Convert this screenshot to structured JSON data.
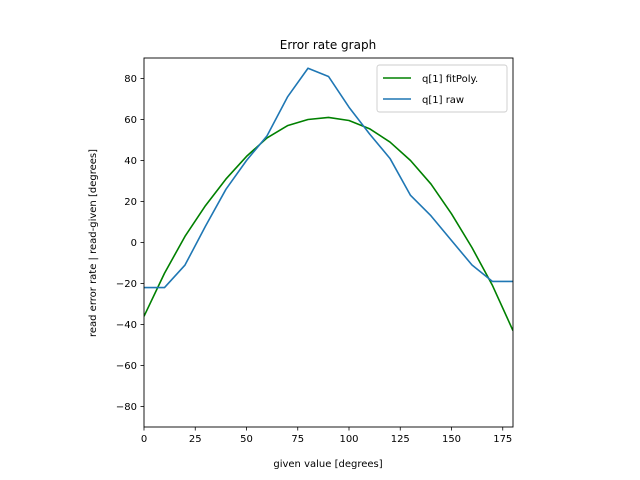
{
  "chart_data": {
    "type": "line",
    "title": "Error rate graph",
    "xlabel": "given value [degrees]",
    "ylabel": "read error rate | read-given [degrees]",
    "xlim": [
      0,
      180
    ],
    "ylim": [
      -90,
      90
    ],
    "xticks": [
      0,
      25,
      50,
      75,
      100,
      125,
      150,
      175
    ],
    "yticks": [
      -80,
      -60,
      -40,
      -20,
      0,
      20,
      40,
      60,
      80
    ],
    "grid": false,
    "legend_position": "top-right",
    "series": [
      {
        "name": "q[1] fitPoly.",
        "color": "#008000",
        "x": [
          0,
          10,
          20,
          30,
          40,
          50,
          60,
          70,
          80,
          90,
          100,
          110,
          120,
          130,
          140,
          150,
          160,
          170,
          180
        ],
        "y": [
          -36,
          -15,
          3,
          18,
          31,
          42,
          51,
          57,
          60,
          61,
          59.5,
          55.5,
          49,
          40,
          28.5,
          14,
          -2.5,
          -21,
          -43
        ]
      },
      {
        "name": "q[1] raw",
        "color": "#1f77b4",
        "x": [
          0,
          10,
          20,
          30,
          40,
          50,
          60,
          70,
          80,
          90,
          100,
          110,
          120,
          130,
          140,
          150,
          160,
          170,
          180
        ],
        "y": [
          -22,
          -22,
          -11,
          8,
          26,
          40,
          52,
          71,
          85,
          81,
          66,
          53,
          41,
          23,
          13,
          1,
          -11,
          -19,
          -19
        ]
      }
    ]
  }
}
